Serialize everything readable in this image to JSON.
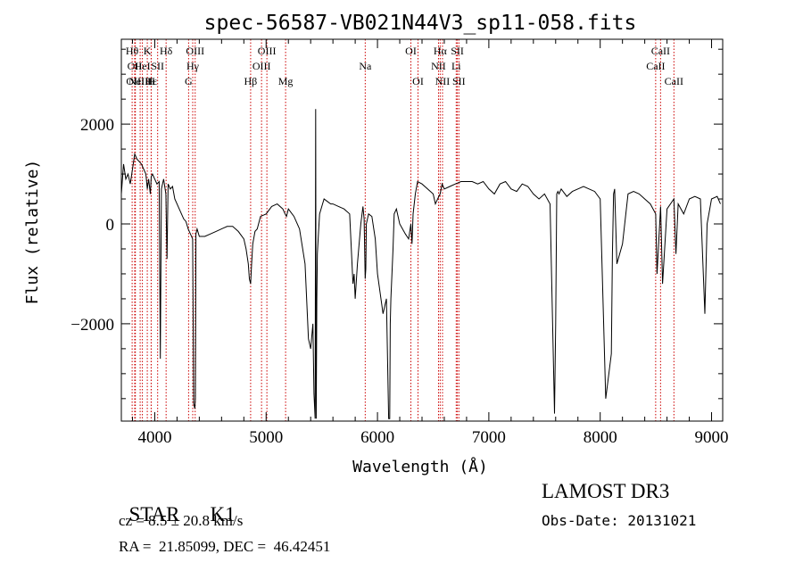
{
  "chart_data": {
    "type": "line",
    "title": "spec-56587-VB021N44V3_sp11-058.fits",
    "xlabel": "Wavelength (Å)",
    "ylabel": "Flux (relative)",
    "xlim": [
      3700,
      9100
    ],
    "ylim": [
      -3950,
      3700
    ],
    "x_ticks": [
      4000,
      5000,
      6000,
      7000,
      8000,
      9000
    ],
    "y_ticks": [
      -2000,
      0,
      2000
    ],
    "grid": false,
    "line_color": "#000000",
    "marker_color": "#cc0000",
    "series": [
      {
        "x": [
          3700,
          3720,
          3740,
          3760,
          3780,
          3800,
          3820,
          3840,
          3860,
          3880,
          3900,
          3920,
          3933,
          3945,
          3960,
          3968,
          3980,
          4000,
          4020,
          4040,
          4050,
          4060,
          4080,
          4100,
          4110,
          4120,
          4140,
          4160,
          4180,
          4200,
          4220,
          4240,
          4260,
          4280,
          4300,
          4320,
          4340,
          4350,
          4360,
          4365,
          4370,
          4380,
          4400,
          4450,
          4500,
          4550,
          4600,
          4650,
          4700,
          4750,
          4800,
          4820,
          4840,
          4850,
          4861,
          4870,
          4880,
          4900,
          4920,
          4950,
          5000,
          5050,
          5100,
          5150,
          5170,
          5183,
          5200,
          5250,
          5300,
          5350,
          5380,
          5400,
          5420,
          5430,
          5440,
          5445,
          5450,
          5455,
          5460,
          5470,
          5480,
          5500,
          5520,
          5550,
          5580,
          5600,
          5650,
          5700,
          5750,
          5780,
          5790,
          5800,
          5820,
          5850,
          5870,
          5880,
          5890,
          5895,
          5900,
          5920,
          5950,
          5980,
          6000,
          6050,
          6080,
          6100,
          6110,
          6115,
          6120,
          6130,
          6140,
          6150,
          6170,
          6200,
          6250,
          6280,
          6300,
          6310,
          6320,
          6340,
          6360,
          6400,
          6450,
          6500,
          6520,
          6540,
          6563,
          6580,
          6600,
          6650,
          6700,
          6750,
          6800,
          6850,
          6900,
          6950,
          7000,
          7050,
          7100,
          7150,
          7200,
          7250,
          7300,
          7350,
          7400,
          7450,
          7500,
          7550,
          7590,
          7600,
          7610,
          7620,
          7630,
          7650,
          7700,
          7750,
          7800,
          7850,
          7900,
          7950,
          8000,
          8050,
          8100,
          8110,
          8120,
          8130,
          8150,
          8200,
          8250,
          8300,
          8350,
          8400,
          8450,
          8498,
          8510,
          8542,
          8560,
          8600,
          8662,
          8680,
          8700,
          8750,
          8800,
          8850,
          8900,
          8940,
          8960,
          9000,
          9050,
          9080
        ],
        "y": [
          600,
          1200,
          900,
          1000,
          800,
          1100,
          1400,
          1300,
          1250,
          1200,
          1100,
          1000,
          700,
          900,
          600,
          950,
          1000,
          900,
          800,
          850,
          -2700,
          700,
          900,
          600,
          -700,
          800,
          700,
          750,
          500,
          400,
          300,
          200,
          100,
          50,
          -100,
          -200,
          -300,
          -3600,
          -3700,
          -3500,
          -200,
          -100,
          -250,
          -250,
          -200,
          -150,
          -100,
          -50,
          -50,
          -150,
          -300,
          -500,
          -800,
          -1100,
          -1200,
          -800,
          -400,
          -150,
          -100,
          150,
          200,
          350,
          400,
          300,
          200,
          150,
          300,
          150,
          -100,
          -800,
          -2300,
          -2500,
          -2000,
          -3400,
          -3900,
          2300,
          -3900,
          -1500,
          -600,
          -200,
          200,
          350,
          500,
          450,
          400,
          400,
          350,
          300,
          200,
          -1200,
          -1000,
          -1500,
          -800,
          0,
          350,
          100,
          -1100,
          -900,
          0,
          200,
          150,
          -300,
          -1000,
          -1800,
          -1500,
          -3900,
          -3900,
          -2000,
          -1500,
          -1000,
          -500,
          200,
          300,
          0,
          -200,
          -300,
          0,
          -400,
          200,
          600,
          850,
          800,
          700,
          600,
          400,
          500,
          600,
          800,
          700,
          750,
          800,
          850,
          850,
          850,
          800,
          850,
          700,
          600,
          800,
          850,
          700,
          650,
          800,
          750,
          600,
          500,
          600,
          400,
          -3800,
          -2000,
          600,
          650,
          600,
          700,
          550,
          650,
          700,
          750,
          700,
          650,
          500,
          -3500,
          -2600,
          -600,
          600,
          700,
          -800,
          -400,
          600,
          650,
          600,
          500,
          400,
          200,
          -1000,
          350,
          -1200,
          300,
          500,
          -600,
          400,
          200,
          500,
          550,
          500,
          -1800,
          0,
          500,
          550,
          400
        ],
        "name": ""
      }
    ],
    "line_markers": [
      {
        "x": 3797,
        "label": "Hθ",
        "row": 1
      },
      {
        "x": 3820,
        "label": "OII",
        "row": 2
      },
      {
        "x": 3826,
        "label": "OIII",
        "row": 3
      },
      {
        "x": 3869,
        "label": "NeIII",
        "row": 3
      },
      {
        "x": 3889,
        "label": "HeI",
        "row": 2
      },
      {
        "x": 3933,
        "label": "K",
        "row": 1
      },
      {
        "x": 3968,
        "label": "Hε",
        "row": 3
      },
      {
        "x": 3968,
        "label": "H",
        "row": 3
      },
      {
        "x": 4026,
        "label": "SII",
        "row": 2
      },
      {
        "x": 4102,
        "label": "Hδ",
        "row": 1
      },
      {
        "x": 4304,
        "label": "G",
        "row": 3
      },
      {
        "x": 4341,
        "label": "Hγ",
        "row": 2
      },
      {
        "x": 4363,
        "label": "OIII",
        "row": 1
      },
      {
        "x": 4861,
        "label": "Hβ",
        "row": 3
      },
      {
        "x": 4959,
        "label": "OIII",
        "row": 2
      },
      {
        "x": 5007,
        "label": "OIII",
        "row": 1
      },
      {
        "x": 5175,
        "label": "Mg",
        "row": 3
      },
      {
        "x": 5890,
        "label": "Na",
        "row": 2
      },
      {
        "x": 6300,
        "label": "OI",
        "row": 1
      },
      {
        "x": 6364,
        "label": "OI",
        "row": 3
      },
      {
        "x": 6548,
        "label": "NII",
        "row": 2
      },
      {
        "x": 6563,
        "label": "Hα",
        "row": 1
      },
      {
        "x": 6584,
        "label": "NII",
        "row": 3
      },
      {
        "x": 6707,
        "label": "Li",
        "row": 2
      },
      {
        "x": 6717,
        "label": "SII",
        "row": 1
      },
      {
        "x": 6731,
        "label": "SII",
        "row": 3
      },
      {
        "x": 8498,
        "label": "CaII",
        "row": 2
      },
      {
        "x": 8542,
        "label": "CaII",
        "row": 1
      },
      {
        "x": 8662,
        "label": "CaII",
        "row": 3
      }
    ]
  },
  "footer": {
    "class_label": "STAR",
    "subclass": "K1",
    "cz_line": "cz = 8.5 ± 20.8 km/s",
    "coord_line": "RA =  21.85099, DEC =  46.42451",
    "survey": "LAMOST DR3",
    "obs_date": "Obs-Date: 20131021"
  }
}
